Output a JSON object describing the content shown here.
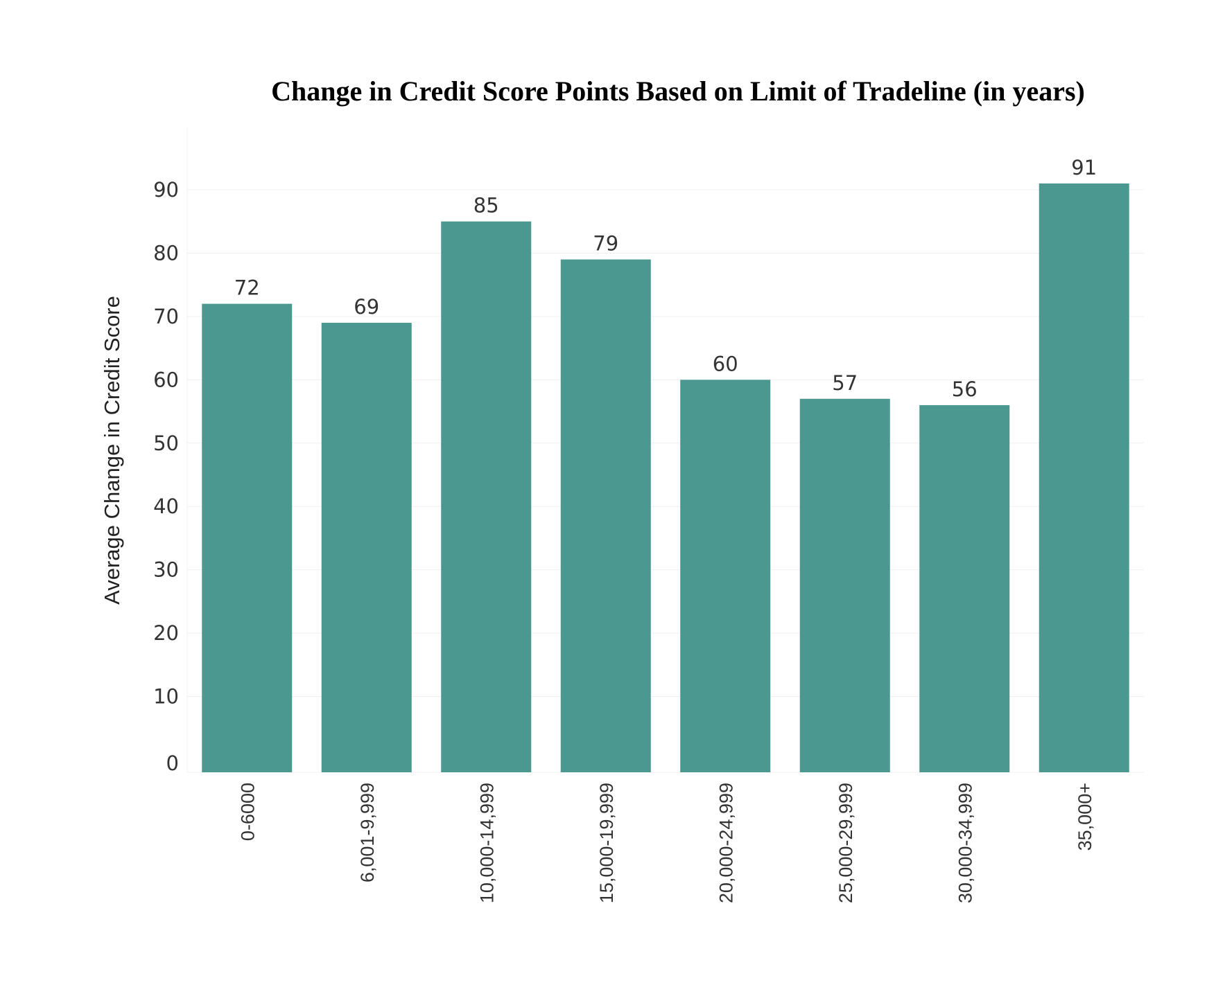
{
  "chart_data": {
    "type": "bar",
    "title": "Change in Credit Score Points Based on Limit of Tradeline (in years)",
    "xlabel": "",
    "ylabel": "Average Change in Credit Score",
    "categories": [
      "0-6000",
      "6,001-9,999",
      "10,000-14,999",
      "15,000-19,999",
      "20,000-24,999",
      "25,000-29,999",
      "30,000-34,999",
      "35,000+"
    ],
    "values": [
      72,
      69,
      85,
      79,
      60,
      57,
      56,
      91
    ],
    "data_labels": [
      "72",
      "69",
      "85",
      "79",
      "60",
      "57",
      "56",
      "91"
    ],
    "yticks": [
      "0",
      "10",
      "20",
      "30",
      "40",
      "50",
      "60",
      "70",
      "80",
      "90"
    ],
    "ylim": [
      0,
      90
    ],
    "grid": true,
    "legend": "none",
    "bar_color": "#4A9890"
  }
}
